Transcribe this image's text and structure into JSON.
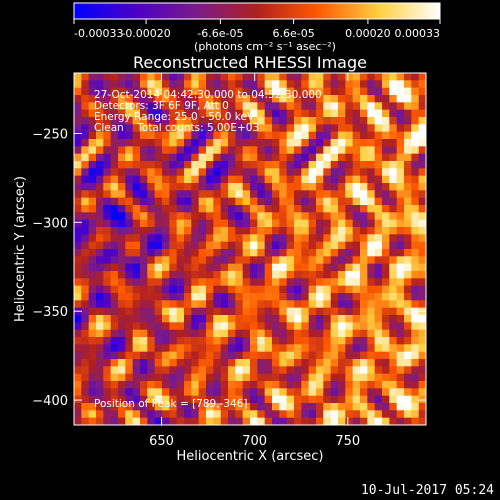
{
  "footer": {
    "date": "10-Jul-2017 05:24"
  },
  "colorbar": {
    "tick_labels": [
      "-0.00033",
      "-0.00020",
      "-6.6e-05",
      "6.6e-05",
      "0.00020",
      "0.00033"
    ],
    "tick_values": [
      -0.00033,
      -0.0002,
      -6.6e-05,
      6.6e-05,
      0.0002,
      0.00033
    ],
    "range": [
      -0.00033,
      0.00033
    ],
    "unit_label": "(photons cm⁻² s⁻¹ asec⁻²)",
    "colormap": [
      "#0000ff",
      "#4b00c8",
      "#7a1b8c",
      "#b02020",
      "#ff5a00",
      "#ffd040",
      "#ffffff"
    ]
  },
  "chart_data": {
    "type": "heatmap",
    "title": "Reconstructed RHESSI Image",
    "xlabel": "Heliocentric X (arcsec)",
    "ylabel": "Heliocentric Y (arcsec)",
    "xlim": [
      603,
      792
    ],
    "ylim": [
      -414,
      -216
    ],
    "xticks": [
      650,
      700,
      750
    ],
    "yticks": [
      -250,
      -300,
      -350,
      -400
    ],
    "grid": false,
    "grid_size": [
      48,
      48
    ],
    "value_range": [
      -0.00033,
      0.00033
    ],
    "annotations": [
      "27-Oct-2014 04:42:30.000 to 04:52:30.000",
      "Detectors: 3F 6F 9F, Att 0",
      "Energy Range: 25.0 - 50.0 keV",
      "Clean    Total counts: 5.00E+03"
    ],
    "peak_label": "Position of Peak = [789,-346]",
    "peak_position": [
      789,
      -346
    ]
  }
}
